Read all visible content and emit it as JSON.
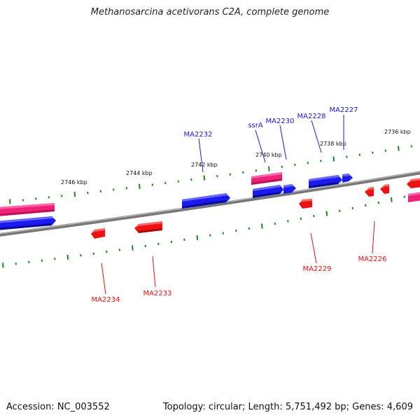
{
  "title": "Methanosarcina acetivorans C2A, complete genome",
  "footer": {
    "accession": "Accession: NC_003552",
    "summary": "Topology: circular; Length: 5,751,492 bp; Genes: 4,609"
  },
  "colors": {
    "forward_gene": "#1a1aee",
    "reverse_gene": "#ee1111",
    "rna_gene": "#ee2277",
    "tick": "#1a8a1a",
    "backbone": "#777777",
    "forward_label": "#1a1acc",
    "reverse_label": "#dd1111"
  },
  "scale_marks": [
    {
      "id": "kbp-2746",
      "label": "2746 kbp"
    },
    {
      "id": "kbp-2744",
      "label": "2744 kbp"
    },
    {
      "id": "kbp-2742",
      "label": "2742 kbp"
    },
    {
      "id": "kbp-2740",
      "label": "2740 kbp"
    },
    {
      "id": "kbp-2738",
      "label": "2738 kbp"
    },
    {
      "id": "kbp-2736",
      "label": "2736 kbp"
    }
  ],
  "gene_labels": [
    {
      "id": "ma2232",
      "name": "MA2232",
      "strand": "forward"
    },
    {
      "id": "ssra",
      "name": "ssrA",
      "strand": "forward"
    },
    {
      "id": "ma2230",
      "name": "MA2230",
      "strand": "forward"
    },
    {
      "id": "ma2228",
      "name": "MA2228",
      "strand": "forward"
    },
    {
      "id": "ma2227",
      "name": "MA2227",
      "strand": "forward"
    },
    {
      "id": "ma2234",
      "name": "MA2234",
      "strand": "reverse"
    },
    {
      "id": "ma2233",
      "name": "MA2233",
      "strand": "reverse"
    },
    {
      "id": "ma2229",
      "name": "MA2229",
      "strand": "reverse"
    },
    {
      "id": "ma2226",
      "name": "MA2226",
      "strand": "reverse"
    }
  ]
}
